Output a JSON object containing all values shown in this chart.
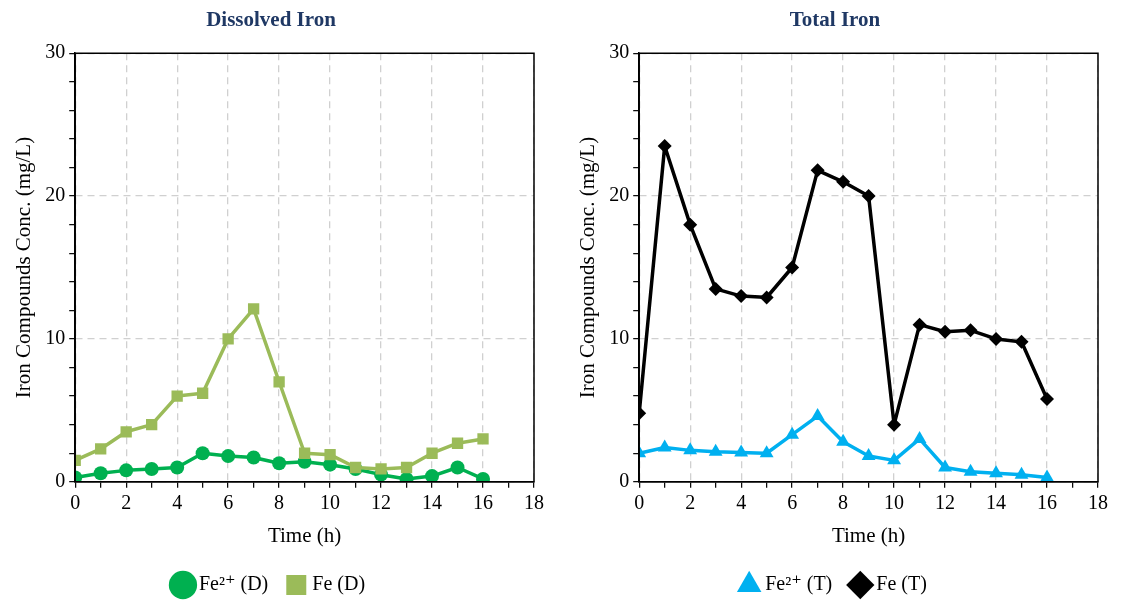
{
  "chart_data": [
    {
      "type": "line",
      "title": "Dissolved Iron",
      "xlabel": "Time (h)",
      "ylabel": "Iron Compounds Conc. (mg/L)",
      "x": [
        0,
        1,
        2,
        3,
        4,
        5,
        6,
        7,
        8,
        9,
        10,
        11,
        12,
        13,
        14,
        15,
        16
      ],
      "series": [
        {
          "name": "Fe²⁺ (D)",
          "color": "#00b050",
          "marker": "circle",
          "values": [
            0.3,
            0.6,
            0.8,
            0.9,
            1.0,
            2.0,
            1.8,
            1.7,
            1.3,
            1.4,
            1.2,
            0.9,
            0.5,
            0.2,
            0.4,
            1.0,
            0.2
          ]
        },
        {
          "name": "Fe (D)",
          "color": "#9bbb59",
          "marker": "square",
          "values": [
            1.5,
            2.3,
            3.5,
            4.0,
            6.0,
            6.2,
            10.0,
            12.1,
            7.0,
            2.0,
            1.9,
            1.0,
            0.9,
            1.0,
            2.0,
            2.7,
            3.0
          ]
        }
      ],
      "xlim": [
        0,
        18
      ],
      "xticks": [
        0,
        {
          "value": 1,
          "label": null
        },
        2,
        {
          "value": 3,
          "label": null
        },
        4,
        {
          "value": 5,
          "label": null
        },
        6,
        {
          "value": 7,
          "label": null
        },
        8,
        {
          "value": 9,
          "label": null
        },
        10,
        {
          "value": 11,
          "label": null
        },
        12,
        {
          "value": 13,
          "label": null
        },
        14,
        {
          "value": 15,
          "label": null
        },
        16,
        {
          "value": 17,
          "label": null
        },
        18
      ],
      "ylim": [
        0,
        30
      ],
      "yticks": [
        0,
        {
          "value": 2,
          "label": null
        },
        {
          "value": 4,
          "label": null
        },
        {
          "value": 6,
          "label": null
        },
        {
          "value": 8,
          "label": null
        },
        10,
        {
          "value": 12,
          "label": null
        },
        {
          "value": 14,
          "label": null
        },
        {
          "value": 16,
          "label": null
        },
        {
          "value": 18,
          "label": null
        },
        20,
        {
          "value": 22,
          "label": null
        },
        {
          "value": 24,
          "label": null
        },
        {
          "value": 26,
          "label": null
        },
        {
          "value": 28,
          "label": null
        },
        30
      ],
      "grid": true,
      "legend": "bottom"
    },
    {
      "type": "line",
      "title": "Total Iron",
      "xlabel": "Time (h)",
      "ylabel": "Iron Compounds Conc. (mg/L)",
      "x": [
        0,
        1,
        2,
        3,
        4,
        5,
        6,
        7,
        8,
        9,
        10,
        11,
        12,
        13,
        14,
        15,
        16
      ],
      "series": [
        {
          "name": "Fe²⁺ (T)",
          "color": "#00b0f0",
          "marker": "triangle",
          "values": [
            2.0,
            2.4,
            2.2,
            2.1,
            2.05,
            2.0,
            3.3,
            4.6,
            2.8,
            1.8,
            1.5,
            3.0,
            1.0,
            0.7,
            0.6,
            0.5,
            0.3
          ]
        },
        {
          "name": "Fe (T)",
          "color": "#000000",
          "marker": "diamond",
          "values": [
            4.8,
            23.5,
            18.0,
            13.5,
            13.0,
            12.9,
            15.0,
            21.8,
            21.0,
            20.0,
            4.0,
            11.0,
            10.5,
            10.6,
            10.0,
            9.8,
            5.8
          ]
        }
      ],
      "xlim": [
        0,
        18
      ],
      "xticks": [
        0,
        {
          "value": 1,
          "label": null
        },
        2,
        {
          "value": 3,
          "label": null
        },
        4,
        {
          "value": 5,
          "label": null
        },
        6,
        {
          "value": 7,
          "label": null
        },
        8,
        {
          "value": 9,
          "label": null
        },
        10,
        {
          "value": 11,
          "label": null
        },
        12,
        {
          "value": 13,
          "label": null
        },
        14,
        {
          "value": 15,
          "label": null
        },
        16,
        {
          "value": 17,
          "label": null
        },
        18
      ],
      "ylim": [
        0,
        30
      ],
      "yticks": [
        0,
        {
          "value": 2,
          "label": null
        },
        {
          "value": 4,
          "label": null
        },
        {
          "value": 6,
          "label": null
        },
        {
          "value": 8,
          "label": null
        },
        10,
        {
          "value": 12,
          "label": null
        },
        {
          "value": 14,
          "label": null
        },
        {
          "value": 16,
          "label": null
        },
        {
          "value": 18,
          "label": null
        },
        20,
        {
          "value": 22,
          "label": null
        },
        {
          "value": 24,
          "label": null
        },
        {
          "value": 26,
          "label": null
        },
        {
          "value": 28,
          "label": null
        },
        30
      ],
      "grid": true,
      "legend": "bottom"
    }
  ]
}
